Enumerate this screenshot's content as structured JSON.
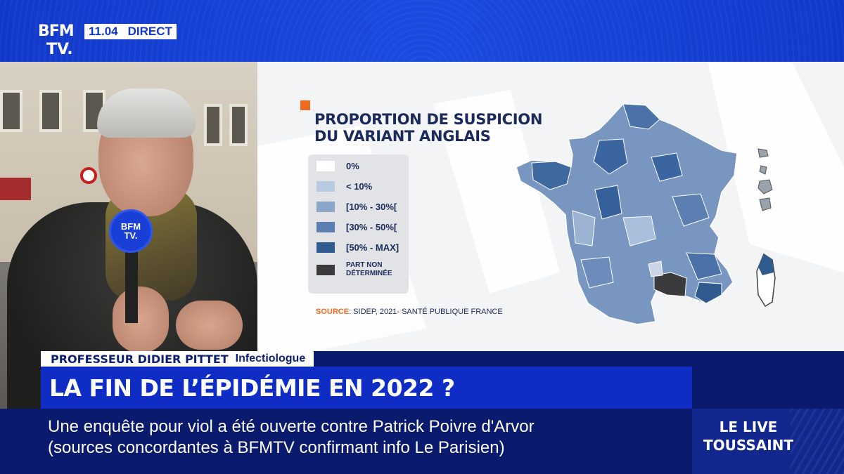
{
  "channel": {
    "logo_line1": "BFM",
    "logo_line2": "TV.",
    "time": "11.04",
    "live_label": "DIRECT"
  },
  "mic_logo": {
    "line1": "BFM",
    "line2": "TV."
  },
  "map": {
    "title_line1": "PROPORTION DE SUSPICION",
    "title_line2": "DU VARIANT ANGLAIS",
    "legend": [
      {
        "label": "0%",
        "color": "#ffffff"
      },
      {
        "label": "< 10%",
        "color": "#b9cbe0"
      },
      {
        "label": "[10% - 30%[",
        "color": "#8aa6c8"
      },
      {
        "label": "[30% - 50%[",
        "color": "#5a7fb0"
      },
      {
        "label": "[50% - MAX]",
        "color": "#2f5b8f"
      }
    ],
    "legend_undetermined": {
      "line1": "PART NON",
      "line2": "DÉTERMINÉE",
      "color": "#3b3b3d"
    },
    "source_key": "SOURCE",
    "source_text": ": SIDEP, 2021- SANTÉ PUBLIQUE FRANCE"
  },
  "lower_third": {
    "speaker": "PROFESSEUR DIDIER PITTET",
    "role": "Infectiologue",
    "headline": "LA FIN DE L’ÉPIDÉMIE EN 2022 ?"
  },
  "ticker": {
    "line1": "Une enquête pour viol a été ouverte contre Patrick Poivre d'Arvor",
    "line2": "(sources concordantes à BFMTV confirmant info Le Parisien)"
  },
  "program": {
    "line1": "LE LIVE",
    "line2": "TOUSSAINT"
  }
}
